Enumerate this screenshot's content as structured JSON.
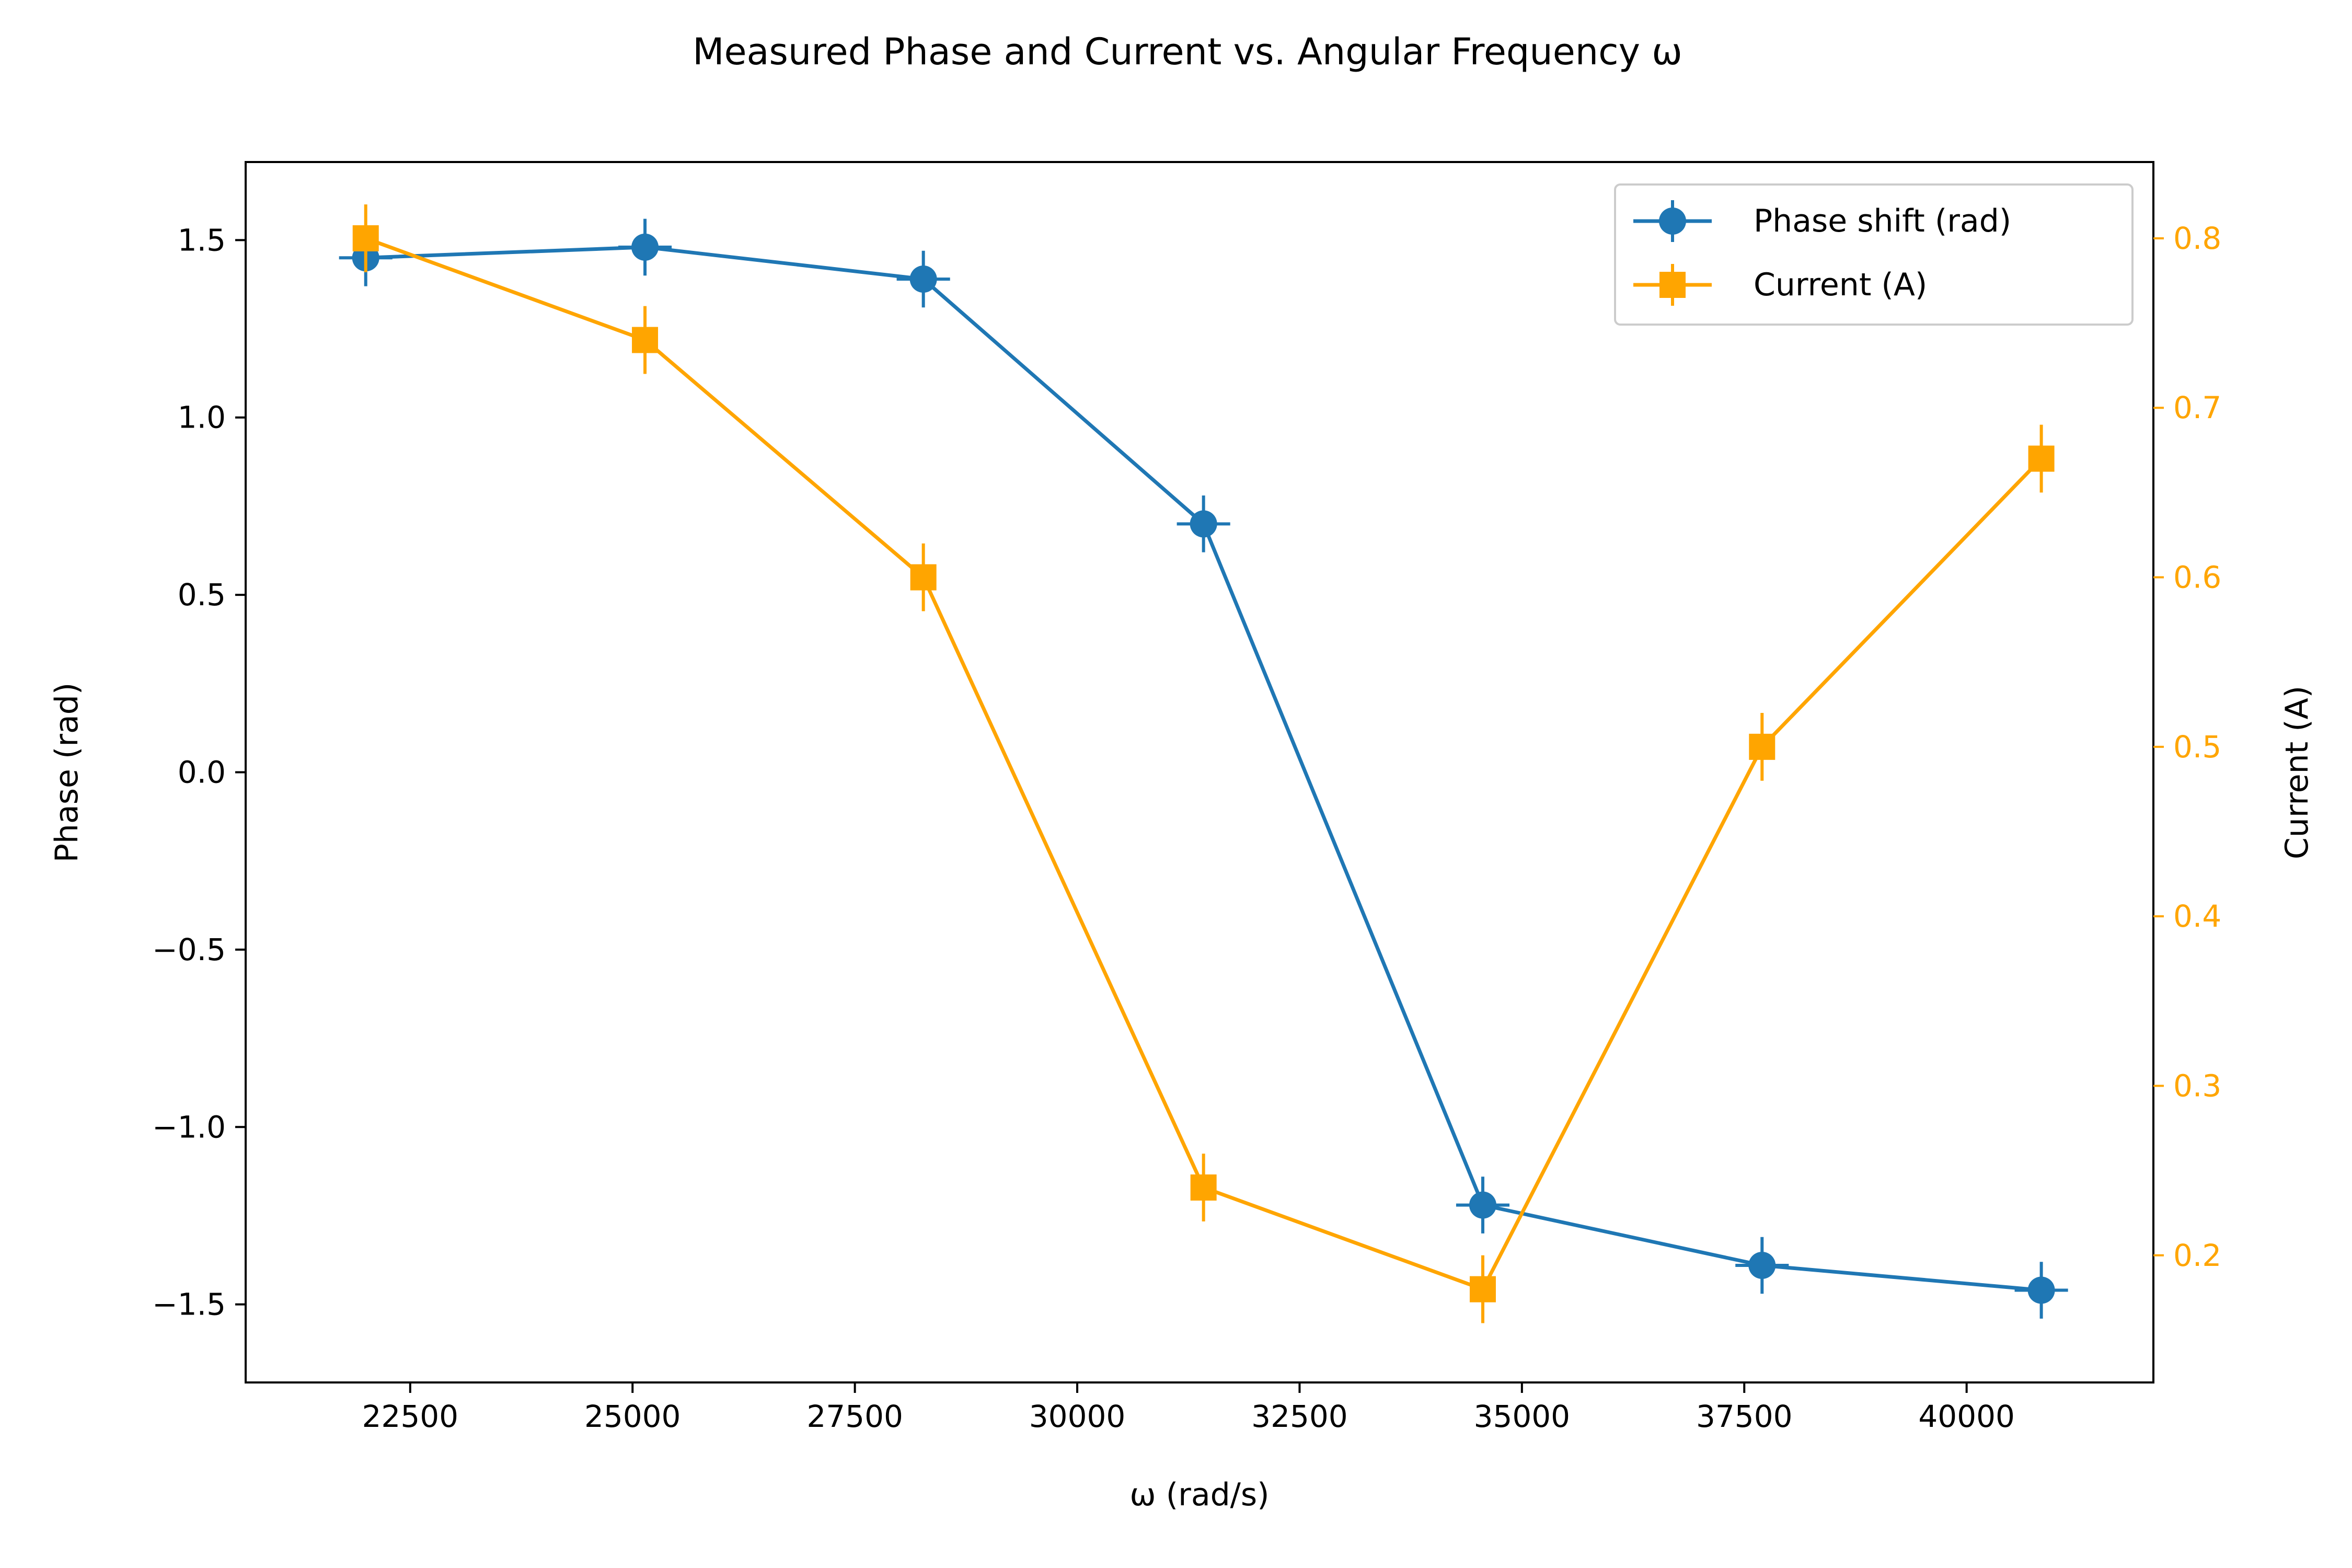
{
  "colors": {
    "phase": "#1f77b4",
    "current": "#ffa500",
    "axis": "#000000",
    "background": "#ffffff"
  },
  "chart_data": {
    "type": "line",
    "title": "Measured Phase and Current vs. Angular Frequency ω",
    "xlabel": "ω (rad/s)",
    "ylabel_left": "Phase (rad)",
    "ylabel_right": "Current (A)",
    "xlim": [
      20650,
      42100
    ],
    "ylim_left": [
      -1.72,
      1.72
    ],
    "ylim_right": [
      0.125,
      0.845
    ],
    "x_ticks": [
      "22500",
      "25000",
      "27500",
      "30000",
      "32500",
      "35000",
      "37500",
      "40000"
    ],
    "y_ticks_left": [
      "1.5",
      "1.0",
      "0.5",
      "0.0",
      "−0.5",
      "−1.0",
      "−1.5"
    ],
    "y_ticks_right": [
      "0.8",
      "0.7",
      "0.6",
      "0.5",
      "0.4",
      "0.3",
      "0.2"
    ],
    "grid": false,
    "legend_position": "top-right",
    "x": [
      22000,
      25140,
      28270,
      31420,
      34560,
      37700,
      40840
    ],
    "series": [
      {
        "name": "Phase shift (rad)",
        "axis": "left",
        "marker": "circle",
        "values": [
          1.45,
          1.48,
          1.39,
          0.7,
          -1.22,
          -1.39,
          -1.46
        ],
        "y_error": [
          0.08,
          0.08,
          0.08,
          0.08,
          0.08,
          0.08,
          0.08
        ],
        "x_error": [
          300,
          300,
          300,
          300,
          300,
          300,
          300
        ]
      },
      {
        "name": "Current (A)",
        "axis": "right",
        "marker": "square",
        "values": [
          0.8,
          0.74,
          0.6,
          0.24,
          0.18,
          0.5,
          0.67
        ],
        "y_error": [
          0.02,
          0.02,
          0.02,
          0.02,
          0.02,
          0.02,
          0.02
        ],
        "x_error": [
          0,
          0,
          0,
          0,
          0,
          0,
          0
        ]
      }
    ]
  }
}
